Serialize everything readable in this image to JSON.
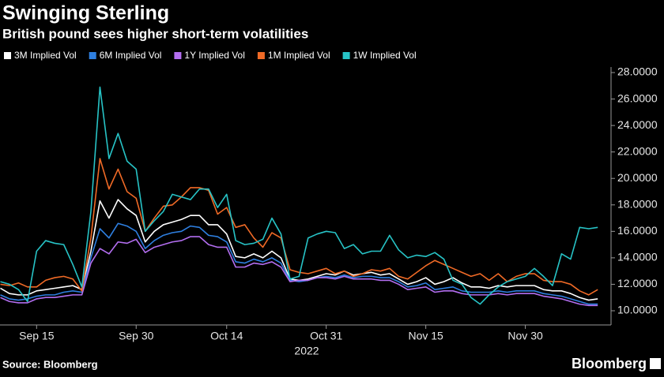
{
  "chart_data": {
    "type": "line",
    "title": "Swinging Sterling",
    "subtitle": "British pound sees higher short-term volatilities",
    "year_label": "2022",
    "source": "Source: Bloomberg",
    "brand": "Bloomberg",
    "grid": false,
    "categories": [
      null,
      null,
      null,
      null,
      "Sep 15",
      null,
      null,
      null,
      null,
      null,
      null,
      null,
      null,
      null,
      null,
      "Sep 30",
      null,
      null,
      null,
      null,
      null,
      null,
      null,
      null,
      null,
      "Oct 14",
      null,
      null,
      null,
      null,
      null,
      null,
      null,
      null,
      null,
      null,
      "Oct 31",
      null,
      null,
      null,
      null,
      null,
      null,
      null,
      null,
      null,
      null,
      "Nov 15",
      null,
      null,
      null,
      null,
      null,
      null,
      null,
      null,
      null,
      null,
      "Nov 30",
      null,
      null,
      null,
      null,
      null,
      null,
      null,
      null
    ],
    "ylim": [
      9.2,
      28.4
    ],
    "yticks": [
      {
        "value": 10,
        "label": "10.0000"
      },
      {
        "value": 12,
        "label": "12.0000"
      },
      {
        "value": 14,
        "label": "14.0000"
      },
      {
        "value": 16,
        "label": "16.0000"
      },
      {
        "value": 18,
        "label": "18.0000"
      },
      {
        "value": 20,
        "label": "20.0000"
      },
      {
        "value": 22,
        "label": "22.0000"
      },
      {
        "value": 24,
        "label": "24.0000"
      },
      {
        "value": 26,
        "label": "26.0000"
      },
      {
        "value": 28,
        "label": "28.0000"
      }
    ],
    "series": [
      {
        "name": "3M Implied Vol",
        "color": "#ffffff",
        "values": [
          11.7,
          11.3,
          11.2,
          11.2,
          11.5,
          11.6,
          11.7,
          11.8,
          11.9,
          11.6,
          14.5,
          18.3,
          17.0,
          18.4,
          17.7,
          17.2,
          15.2,
          16.0,
          16.5,
          16.7,
          16.9,
          17.2,
          17.2,
          16.5,
          16.5,
          15.8,
          14.1,
          14.0,
          14.3,
          14.0,
          14.5,
          14.0,
          12.4,
          12.3,
          12.4,
          12.6,
          12.8,
          12.7,
          13.0,
          12.7,
          12.8,
          12.9,
          12.7,
          12.8,
          12.4,
          12.0,
          12.2,
          12.5,
          12.0,
          12.2,
          12.5,
          12.1,
          11.8,
          11.8,
          11.7,
          11.9,
          11.8,
          11.9,
          11.9,
          11.9,
          11.6,
          11.5,
          11.5,
          11.3,
          11.0,
          10.8,
          10.9
        ]
      },
      {
        "name": "6M Implied Vol",
        "color": "#2e7fe0",
        "values": [
          11.2,
          10.9,
          10.8,
          10.9,
          11.1,
          11.2,
          11.2,
          11.4,
          11.5,
          11.4,
          14.0,
          16.2,
          15.5,
          16.6,
          16.4,
          16.0,
          14.7,
          15.3,
          15.7,
          15.9,
          16.0,
          16.4,
          16.3,
          15.7,
          15.6,
          15.2,
          13.7,
          13.6,
          13.9,
          13.7,
          14.0,
          13.6,
          12.3,
          12.2,
          12.3,
          12.5,
          12.6,
          12.5,
          12.7,
          12.5,
          12.6,
          12.6,
          12.5,
          12.5,
          12.2,
          11.8,
          11.9,
          12.1,
          11.6,
          11.7,
          11.8,
          11.5,
          11.4,
          11.4,
          11.4,
          11.5,
          11.4,
          11.5,
          11.5,
          11.5,
          11.3,
          11.2,
          11.1,
          10.9,
          10.7,
          10.5,
          10.5
        ]
      },
      {
        "name": "1Y Implied Vol",
        "color": "#b36ef0",
        "values": [
          11.0,
          10.7,
          10.6,
          10.6,
          10.9,
          11.0,
          11.0,
          11.1,
          11.2,
          11.2,
          13.6,
          14.7,
          14.3,
          15.2,
          15.1,
          15.4,
          14.4,
          14.8,
          15.0,
          15.2,
          15.3,
          15.6,
          15.6,
          15.0,
          14.8,
          14.8,
          13.3,
          13.3,
          13.6,
          13.5,
          13.7,
          13.3,
          12.2,
          12.3,
          12.3,
          12.5,
          12.5,
          12.4,
          12.6,
          12.4,
          12.4,
          12.4,
          12.3,
          12.3,
          12.0,
          11.6,
          11.7,
          11.8,
          11.4,
          11.5,
          11.5,
          11.3,
          11.2,
          11.2,
          11.2,
          11.3,
          11.2,
          11.3,
          11.3,
          11.3,
          11.1,
          11.0,
          10.9,
          10.7,
          10.5,
          10.4,
          10.4
        ]
      },
      {
        "name": "1M Implied Vol",
        "color": "#f06a26",
        "values": [
          12.0,
          11.9,
          12.1,
          11.8,
          11.8,
          12.3,
          12.5,
          12.6,
          12.4,
          11.5,
          15.5,
          21.5,
          19.2,
          20.7,
          19.0,
          18.5,
          16.0,
          17.0,
          17.9,
          18.0,
          18.6,
          19.3,
          19.3,
          19.1,
          17.3,
          17.8,
          16.3,
          16.5,
          15.5,
          14.8,
          15.9,
          15.5,
          13.1,
          12.9,
          12.8,
          13.0,
          13.2,
          12.8,
          13.0,
          12.6,
          12.8,
          13.1,
          13.0,
          13.2,
          12.6,
          12.4,
          12.9,
          13.4,
          13.8,
          13.5,
          13.2,
          12.9,
          12.6,
          12.8,
          12.3,
          12.8,
          12.2,
          12.6,
          12.8,
          12.8,
          12.3,
          12.2,
          12.2,
          12.0,
          11.5,
          11.2,
          11.6
        ]
      },
      {
        "name": "1W Implied Vol",
        "color": "#27c3c6",
        "values": [
          12.2,
          12.0,
          11.6,
          10.7,
          14.5,
          15.3,
          15.1,
          15.0,
          13.5,
          11.8,
          17.5,
          26.9,
          21.5,
          23.4,
          21.3,
          20.7,
          16.0,
          16.8,
          17.5,
          18.8,
          18.6,
          18.4,
          19.2,
          19.2,
          17.8,
          18.8,
          15.3,
          15.0,
          15.1,
          15.4,
          17.0,
          15.8,
          12.4,
          12.6,
          15.5,
          15.8,
          16.0,
          15.9,
          14.7,
          15.0,
          14.3,
          14.5,
          14.5,
          15.7,
          14.6,
          14.0,
          14.2,
          14.1,
          14.4,
          13.9,
          12.3,
          12.0,
          11.0,
          10.5,
          11.2,
          11.8,
          12.2,
          12.4,
          12.6,
          13.2,
          12.6,
          11.9,
          14.3,
          13.9,
          16.3,
          16.2,
          16.3
        ]
      }
    ]
  }
}
